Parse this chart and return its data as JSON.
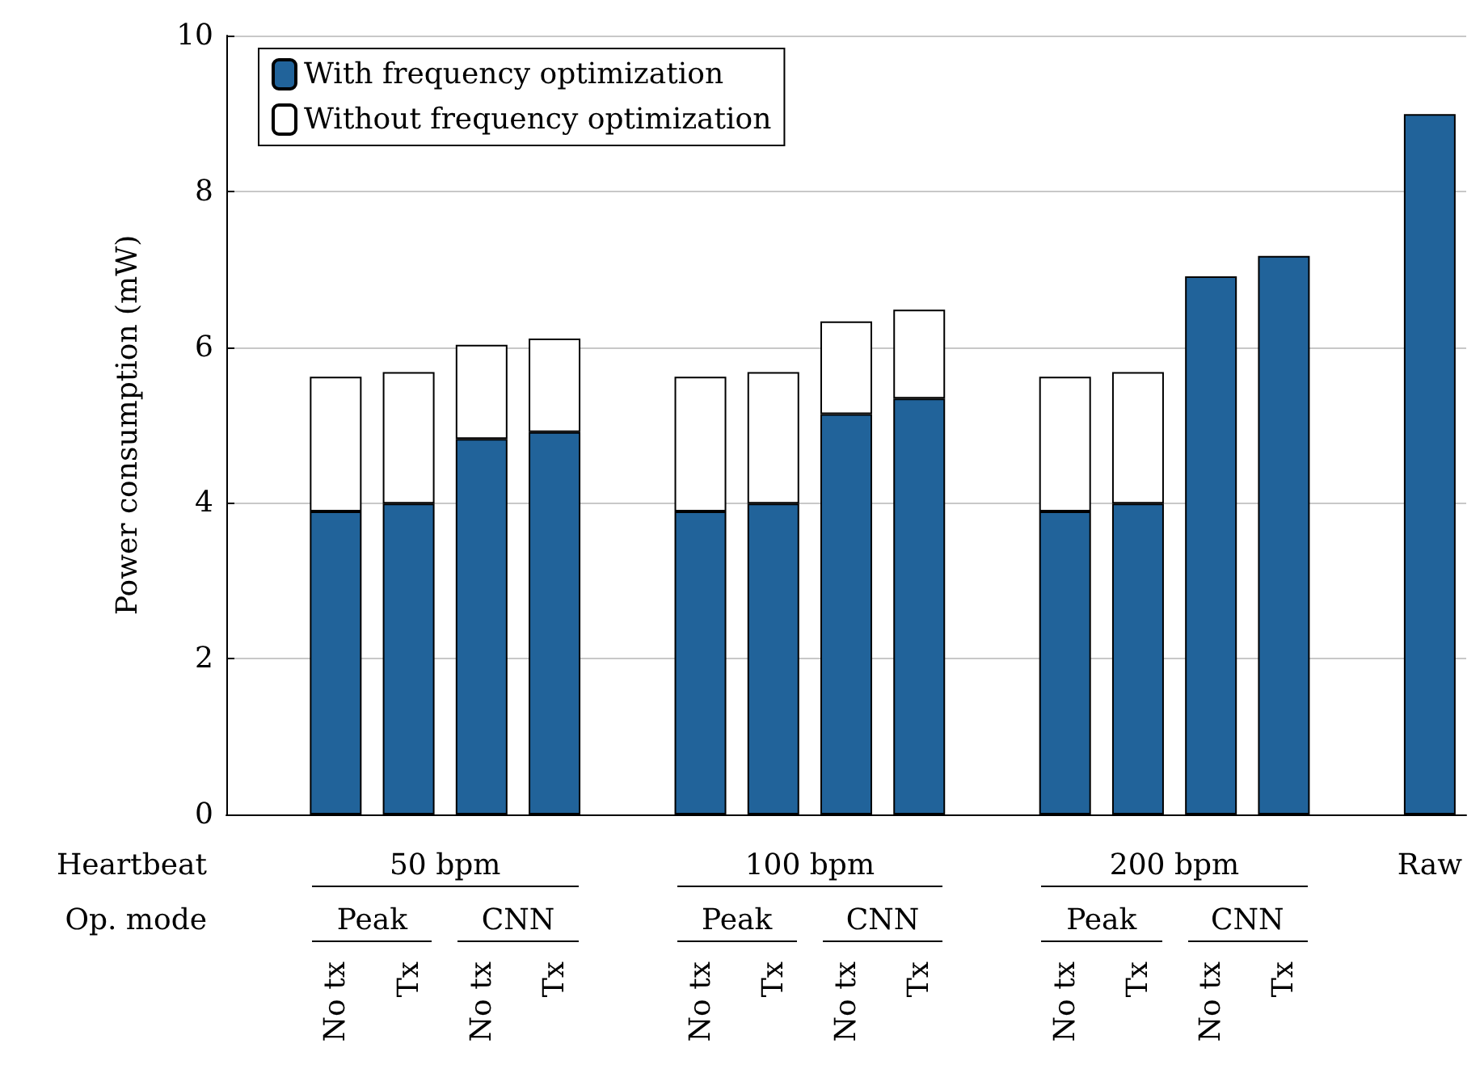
{
  "chart_data": {
    "type": "bar",
    "stacked": true,
    "ylabel": "Power consumption (mW)",
    "categories": [
      null,
      "No tx",
      "Tx",
      "No tx",
      "Tx",
      null,
      "No tx",
      "Tx",
      "No tx",
      "Tx",
      null,
      "No tx",
      "Tx",
      "No tx",
      "Tx",
      null,
      null
    ],
    "series": [
      {
        "name": "With frequency optimization",
        "color": "#21639a",
        "values": [
          null,
          3.89,
          3.99,
          4.82,
          4.91,
          null,
          3.89,
          3.99,
          5.14,
          5.34,
          null,
          3.89,
          3.99,
          6.91,
          7.17,
          null,
          8.99
        ]
      },
      {
        "name": "Without frequency optimization",
        "color": "#ffffff",
        "values": [
          null,
          1.73,
          1.69,
          1.21,
          1.2,
          null,
          1.73,
          1.69,
          1.19,
          1.14,
          null,
          1.73,
          1.69,
          null,
          null,
          null,
          null
        ]
      }
    ],
    "ylim": [
      0,
      10
    ],
    "yticks": [
      0,
      2,
      4,
      6,
      8,
      10
    ],
    "grid": "y",
    "legend": "top left",
    "annotations": [
      "Heartbeat",
      "Op. mode",
      "50 bpm",
      "100 bpm",
      "200 bpm",
      "Raw",
      "Peak",
      "CNN",
      "Peak",
      "CNN",
      "Peak",
      "CNN"
    ]
  }
}
